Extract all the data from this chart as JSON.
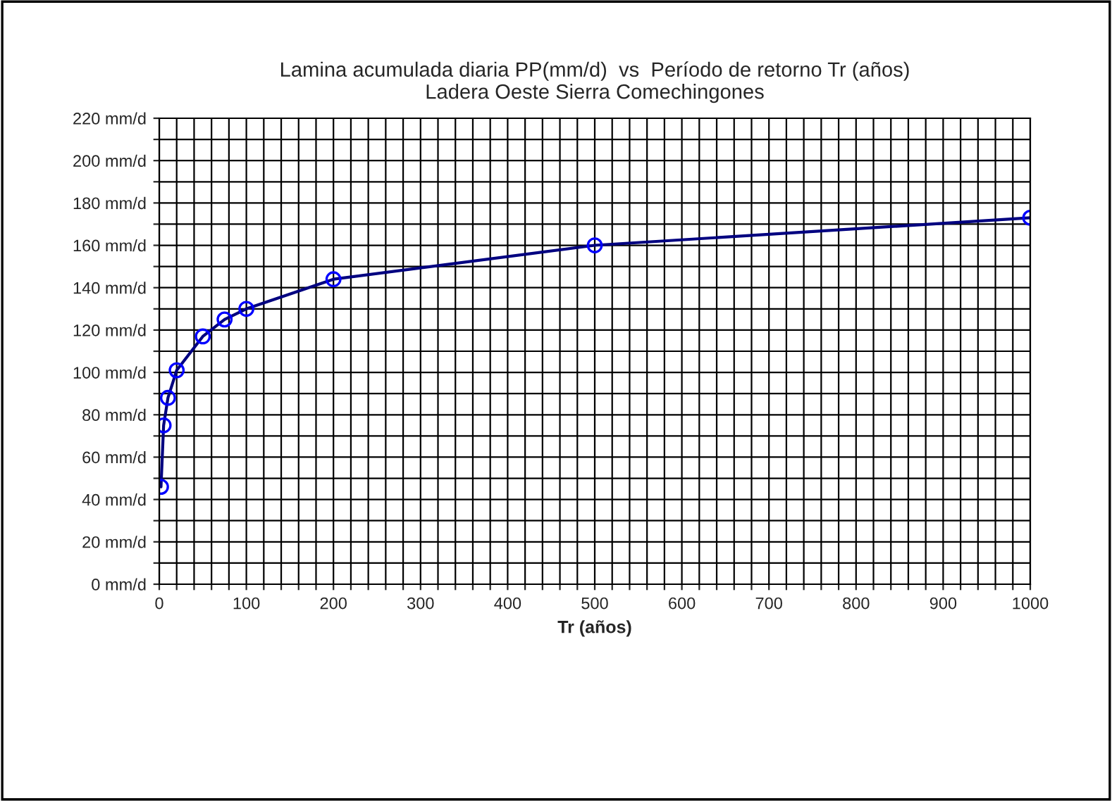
{
  "chart_data": {
    "type": "line",
    "title": "Lamina acumulada diaria PP(mm/d)  vs  Período de retorno Tr (años)\nLadera Oeste Sierra Comechingones",
    "xlabel": "Tr (años)",
    "x": [
      2,
      5,
      10,
      20,
      50,
      75,
      100,
      200,
      500,
      1000
    ],
    "series": [
      {
        "color": "#000080",
        "values": [
          46,
          75,
          88,
          101,
          117,
          125,
          130,
          144,
          160,
          173
        ]
      }
    ],
    "marker": "circle",
    "line_style": "solid",
    "grid": true,
    "legend": false,
    "xlim": [
      0,
      1000
    ],
    "xticks": [
      0,
      {
        "value": 20,
        "label": null
      },
      {
        "value": 40,
        "label": null
      },
      {
        "value": 60,
        "label": null
      },
      {
        "value": 80,
        "label": null
      },
      100,
      {
        "value": 120,
        "label": null
      },
      {
        "value": 140,
        "label": null
      },
      {
        "value": 160,
        "label": null
      },
      {
        "value": 180,
        "label": null
      },
      200,
      {
        "value": 220,
        "label": null
      },
      {
        "value": 240,
        "label": null
      },
      {
        "value": 260,
        "label": null
      },
      {
        "value": 280,
        "label": null
      },
      300,
      {
        "value": 320,
        "label": null
      },
      {
        "value": 340,
        "label": null
      },
      {
        "value": 360,
        "label": null
      },
      {
        "value": 380,
        "label": null
      },
      400,
      {
        "value": 420,
        "label": null
      },
      {
        "value": 440,
        "label": null
      },
      {
        "value": 460,
        "label": null
      },
      {
        "value": 480,
        "label": null
      },
      500,
      {
        "value": 520,
        "label": null
      },
      {
        "value": 540,
        "label": null
      },
      {
        "value": 560,
        "label": null
      },
      {
        "value": 580,
        "label": null
      },
      600,
      {
        "value": 620,
        "label": null
      },
      {
        "value": 640,
        "label": null
      },
      {
        "value": 660,
        "label": null
      },
      {
        "value": 680,
        "label": null
      },
      700,
      {
        "value": 720,
        "label": null
      },
      {
        "value": 740,
        "label": null
      },
      {
        "value": 760,
        "label": null
      },
      {
        "value": 780,
        "label": null
      },
      800,
      {
        "value": 820,
        "label": null
      },
      {
        "value": 840,
        "label": null
      },
      {
        "value": 860,
        "label": null
      },
      {
        "value": 880,
        "label": null
      },
      900,
      {
        "value": 920,
        "label": null
      },
      {
        "value": 940,
        "label": null
      },
      {
        "value": 960,
        "label": null
      },
      {
        "value": 980,
        "label": null
      },
      1000
    ],
    "ylim": [
      0,
      220
    ],
    "yticks": [
      {
        "value": 0,
        "label": "0 mm/d"
      },
      {
        "value": 10,
        "label": null
      },
      {
        "value": 20,
        "label": "20 mm/d"
      },
      {
        "value": 30,
        "label": null
      },
      {
        "value": 40,
        "label": "40 mm/d"
      },
      {
        "value": 50,
        "label": null
      },
      {
        "value": 60,
        "label": "60 mm/d"
      },
      {
        "value": 70,
        "label": null
      },
      {
        "value": 80,
        "label": "80 mm/d"
      },
      {
        "value": 90,
        "label": null
      },
      {
        "value": 100,
        "label": "100 mm/d"
      },
      {
        "value": 110,
        "label": null
      },
      {
        "value": 120,
        "label": "120 mm/d"
      },
      {
        "value": 130,
        "label": null
      },
      {
        "value": 140,
        "label": "140 mm/d"
      },
      {
        "value": 150,
        "label": null
      },
      {
        "value": 160,
        "label": "160 mm/d"
      },
      {
        "value": 170,
        "label": null
      },
      {
        "value": 180,
        "label": "180 mm/d"
      },
      {
        "value": 190,
        "label": null
      },
      {
        "value": 200,
        "label": "200 mm/d"
      },
      {
        "value": 210,
        "label": null
      },
      {
        "value": 220,
        "label": "220 mm/d"
      }
    ]
  }
}
